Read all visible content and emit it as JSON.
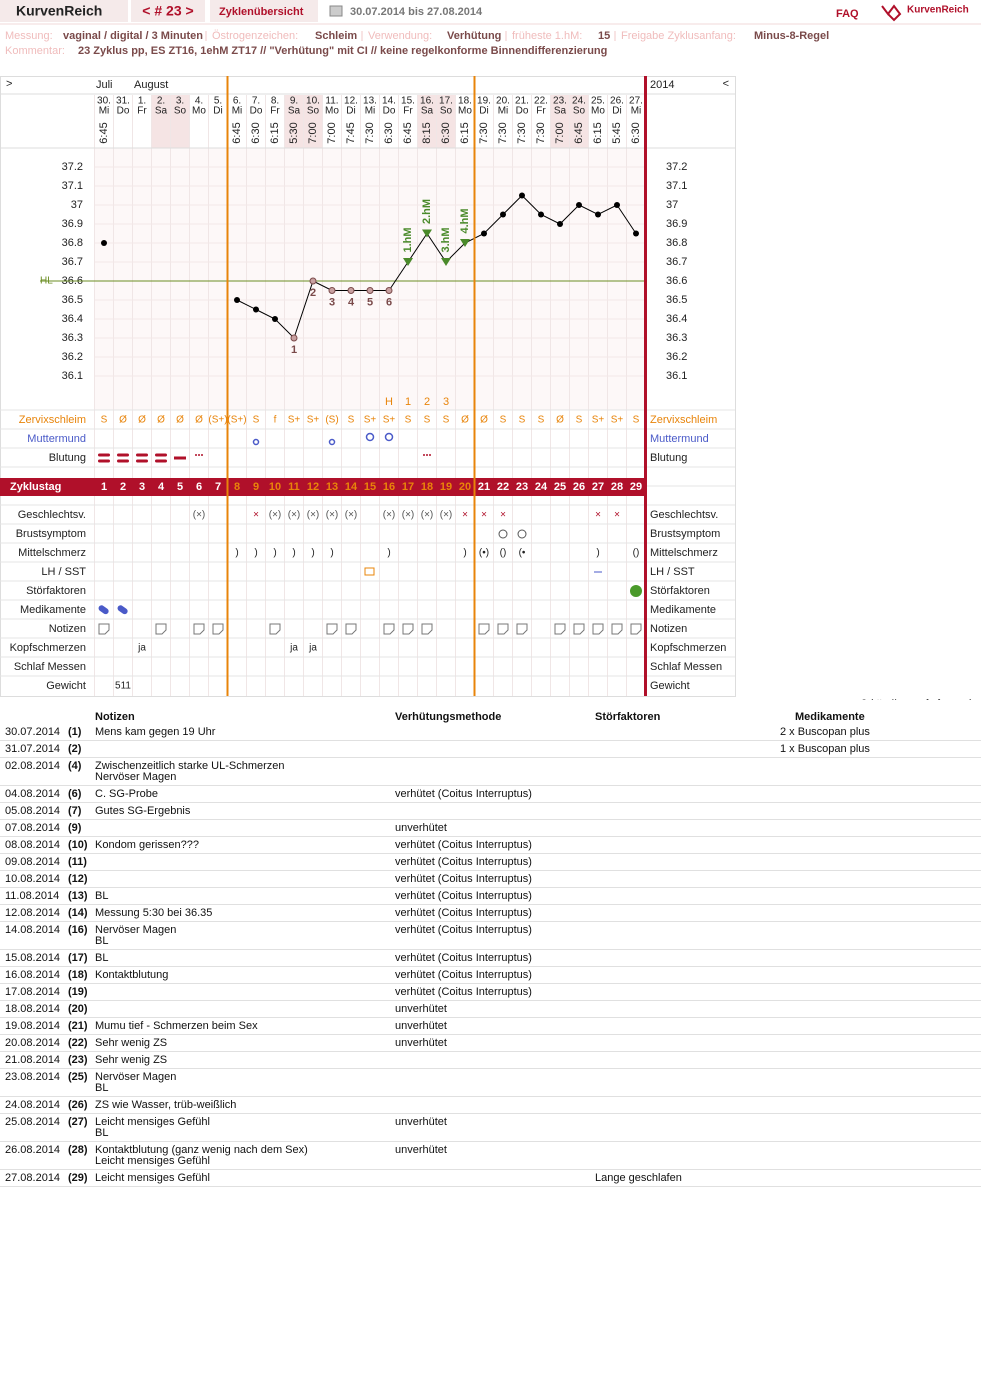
{
  "header": {
    "brand": "KurvenReich",
    "cycle": "< # 23 >",
    "tab": "Zyklenübersicht",
    "range": "30.07.2014 bis 27.08.2014",
    "faq": "FAQ",
    "logo": "KurvenReich"
  },
  "info": [
    {
      "label": "Messung:",
      "value": "vaginal / digital / 3 Minuten"
    },
    {
      "label": "Östrogenzeichen:",
      "value": "Schleim"
    },
    {
      "label": "Verwendung:",
      "value": "Verhütung"
    },
    {
      "label": "früheste 1.hM:",
      "value": "15"
    },
    {
      "label": "Freigabe Zyklusanfang:",
      "value": "Minus-8-Regel"
    }
  ],
  "comment": {
    "label": "Kommentar:",
    "value": "23 Zyklus pp, ES ZT16, 1ehM ZT17 // \"Verhütung\" mit CI // keine regelkonforme Binnendifferenzierung"
  },
  "chart_data": {
    "type": "line",
    "nav_left": ">",
    "nav_right": "<",
    "year": "2014",
    "months": [
      "Juli",
      "August"
    ],
    "categories": [
      "30.",
      "31.",
      "1.",
      "2.",
      "3.",
      "4.",
      "5.",
      "6.",
      "7.",
      "8.",
      "9.",
      "10.",
      "11.",
      "12.",
      "13.",
      "14.",
      "15.",
      "16.",
      "17.",
      "18.",
      "19.",
      "20.",
      "21.",
      "22.",
      "23.",
      "24.",
      "25.",
      "26.",
      "27."
    ],
    "weekdays": [
      "Mi",
      "Do",
      "Fr",
      "Sa",
      "So",
      "Mo",
      "Di",
      "Mi",
      "Do",
      "Fr",
      "Sa",
      "So",
      "Mo",
      "Di",
      "Mi",
      "Do",
      "Fr",
      "Sa",
      "So",
      "Mo",
      "Di",
      "Mi",
      "Do",
      "Fr",
      "Sa",
      "So",
      "Mo",
      "Di",
      "Mi"
    ],
    "times": [
      "6:45",
      null,
      null,
      null,
      null,
      null,
      null,
      "6:45",
      "6:30",
      "6:15",
      "5:30",
      "7:00",
      "7:00",
      "7:45",
      "7:30",
      "6:30",
      "6:45",
      "8:15",
      "6:30",
      "6:15",
      "7:30",
      "7:30",
      "7:30",
      "7:30",
      "7:00",
      "6:45",
      "6:15",
      "5:45",
      "6:30"
    ],
    "values": [
      36.8,
      null,
      null,
      null,
      null,
      null,
      null,
      36.5,
      36.45,
      36.4,
      36.3,
      36.6,
      36.55,
      36.55,
      36.55,
      36.55,
      36.7,
      36.85,
      36.7,
      36.8,
      36.85,
      36.95,
      37.05,
      36.95,
      36.9,
      37.0,
      36.95,
      37.0,
      36.85
    ],
    "color": "#000000",
    "ylim": [
      36.0,
      37.3
    ],
    "yticks": [
      36.1,
      36.2,
      36.3,
      36.4,
      36.5,
      36.6,
      36.7,
      36.8,
      36.9,
      37,
      37.1,
      37.2
    ],
    "hl": {
      "label": "HL",
      "value": 36.6,
      "color": "#6b8e23"
    },
    "low_labels": [
      null,
      null,
      null,
      null,
      null,
      null,
      null,
      null,
      null,
      null,
      "1",
      "2",
      "3",
      "4",
      "5",
      "6",
      null,
      null,
      null,
      null,
      null,
      null,
      null,
      null,
      null,
      null,
      null,
      null,
      null
    ],
    "hm_labels": [
      null,
      null,
      null,
      null,
      null,
      null,
      null,
      null,
      null,
      null,
      null,
      null,
      null,
      null,
      null,
      null,
      "1.hM",
      "2.hM",
      "3.hM",
      "4.hM",
      null,
      null,
      null,
      null,
      null,
      null,
      null,
      null,
      null
    ],
    "peak_labels": [
      null,
      null,
      null,
      null,
      null,
      null,
      null,
      null,
      null,
      null,
      null,
      null,
      null,
      null,
      null,
      "H",
      "1",
      "2",
      "3",
      null,
      null,
      null,
      null,
      null,
      null,
      null,
      null,
      null,
      null
    ],
    "upper_rows": [
      {
        "label": "Zervixschleim",
        "values": [
          "S",
          "Ø",
          "Ø",
          "Ø",
          "Ø",
          "Ø",
          "(S+)",
          "(S+)",
          "S",
          "f",
          "S+",
          "S+",
          "(S)",
          "S",
          "S+",
          "S+",
          "S",
          "S",
          "S",
          "Ø",
          "Ø",
          "S",
          "S",
          "S",
          "Ø",
          "S",
          "S+",
          "S+",
          "S"
        ]
      },
      {
        "label": "Muttermund"
      },
      {
        "label": "Blutung"
      }
    ],
    "cycle_day": {
      "label": "Zyklustag",
      "values": [
        1,
        2,
        3,
        4,
        5,
        6,
        7,
        8,
        9,
        10,
        11,
        12,
        13,
        14,
        15,
        16,
        17,
        18,
        19,
        20,
        21,
        22,
        23,
        24,
        25,
        26,
        27,
        28,
        29
      ]
    },
    "lower_rows": [
      {
        "label": "Geschlechtsv.",
        "values": [
          null,
          null,
          null,
          null,
          null,
          "(×)",
          null,
          null,
          "×",
          "(×)",
          "(×)",
          "(×)",
          "(×)",
          "(×)",
          null,
          "(×)",
          "(×)",
          "(×)",
          "(×)",
          "×",
          "×",
          "×",
          null,
          null,
          null,
          null,
          "×",
          "×",
          null
        ]
      },
      {
        "label": "Brustsymptom"
      },
      {
        "label": "Mittelschmerz",
        "values": [
          null,
          null,
          null,
          null,
          null,
          null,
          null,
          ")",
          ")",
          ")",
          ")",
          ")",
          ")",
          null,
          null,
          ")",
          null,
          null,
          null,
          ")",
          "(•)",
          "()",
          "(•",
          null,
          null,
          null,
          ")",
          null,
          "()"
        ]
      },
      {
        "label": "LH / SST"
      },
      {
        "label": "Störfaktoren"
      },
      {
        "label": "Medikamente"
      },
      {
        "label": "Notizen"
      },
      {
        "label": "Kopfschmerzen",
        "values": [
          null,
          null,
          "ja",
          null,
          null,
          null,
          null,
          null,
          null,
          null,
          "ja",
          "ja",
          null,
          null,
          null,
          null,
          null,
          null,
          null,
          null,
          null,
          null,
          null,
          null,
          null,
          null,
          null,
          null,
          null
        ]
      },
      {
        "label": "Schlaf Messen"
      },
      {
        "label": "Gewicht",
        "values": [
          null,
          "511",
          null,
          null,
          null,
          null,
          null,
          null,
          null,
          null,
          null,
          null,
          null,
          null,
          null,
          null,
          null,
          null,
          null,
          null,
          null,
          null,
          null,
          null,
          null,
          null,
          null,
          null,
          null
        ]
      }
    ]
  },
  "copyright": "© http://www.nfp-forum.de",
  "table": {
    "columns": [
      "Notizen",
      "Verhütungsmethode",
      "Störfaktoren",
      "Medikamente"
    ],
    "rows": [
      {
        "date": "30.07.2014",
        "num": "(1)",
        "notes": [
          "Mens kam gegen 19 Uhr"
        ],
        "med": "2 x Buscopan plus"
      },
      {
        "date": "31.07.2014",
        "num": "(2)",
        "med": "1 x Buscopan plus"
      },
      {
        "date": "02.08.2014",
        "num": "(4)",
        "notes": [
          "Zwischenzeitlich starke UL-Schmerzen",
          "Nervöser Magen"
        ]
      },
      {
        "date": "04.08.2014",
        "num": "(6)",
        "notes": [
          "C. SG-Probe"
        ],
        "method": "verhütet (Coitus Interruptus)"
      },
      {
        "date": "05.08.2014",
        "num": "(7)",
        "notes": [
          "Gutes SG-Ergebnis"
        ]
      },
      {
        "date": "07.08.2014",
        "num": "(9)",
        "method": "unverhütet"
      },
      {
        "date": "08.08.2014",
        "num": "(10)",
        "notes": [
          "Kondom gerissen???"
        ],
        "method": "verhütet (Coitus Interruptus)"
      },
      {
        "date": "09.08.2014",
        "num": "(11)",
        "method": "verhütet (Coitus Interruptus)"
      },
      {
        "date": "10.08.2014",
        "num": "(12)",
        "method": "verhütet (Coitus Interruptus)"
      },
      {
        "date": "11.08.2014",
        "num": "(13)",
        "notes": [
          "BL"
        ],
        "method": "verhütet (Coitus Interruptus)"
      },
      {
        "date": "12.08.2014",
        "num": "(14)",
        "notes": [
          "Messung 5:30 bei 36.35"
        ],
        "method": "verhütet (Coitus Interruptus)"
      },
      {
        "date": "14.08.2014",
        "num": "(16)",
        "notes": [
          "Nervöser Magen",
          "BL"
        ],
        "method": "verhütet (Coitus Interruptus)"
      },
      {
        "date": "15.08.2014",
        "num": "(17)",
        "notes": [
          "BL"
        ],
        "method": "verhütet (Coitus Interruptus)"
      },
      {
        "date": "16.08.2014",
        "num": "(18)",
        "notes": [
          "Kontaktblutung"
        ],
        "method": "verhütet (Coitus Interruptus)"
      },
      {
        "date": "17.08.2014",
        "num": "(19)",
        "method": "verhütet (Coitus Interruptus)"
      },
      {
        "date": "18.08.2014",
        "num": "(20)",
        "method": "unverhütet"
      },
      {
        "date": "19.08.2014",
        "num": "(21)",
        "notes": [
          "Mumu tief - Schmerzen beim Sex"
        ],
        "method": "unverhütet"
      },
      {
        "date": "20.08.2014",
        "num": "(22)",
        "notes": [
          "Sehr wenig ZS"
        ],
        "method": "unverhütet"
      },
      {
        "date": "21.08.2014",
        "num": "(23)",
        "notes": [
          "Sehr wenig ZS"
        ]
      },
      {
        "date": "23.08.2014",
        "num": "(25)",
        "notes": [
          "Nervöser Magen",
          "BL"
        ]
      },
      {
        "date": "24.08.2014",
        "num": "(26)",
        "notes": [
          "ZS wie Wasser, trüb-weißlich"
        ]
      },
      {
        "date": "25.08.2014",
        "num": "(27)",
        "notes": [
          "Leicht mensiges Gefühl",
          "BL"
        ],
        "method": "unverhütet"
      },
      {
        "date": "26.08.2014",
        "num": "(28)",
        "notes": [
          "Kontaktblutung (ganz wenig nach dem Sex)",
          "Leicht mensiges Gefühl"
        ],
        "method": "unverhütet"
      },
      {
        "date": "27.08.2014",
        "num": "(29)",
        "notes": [
          "Leicht mensiges Gefühl"
        ],
        "stoer": "Lange geschlafen"
      }
    ]
  }
}
